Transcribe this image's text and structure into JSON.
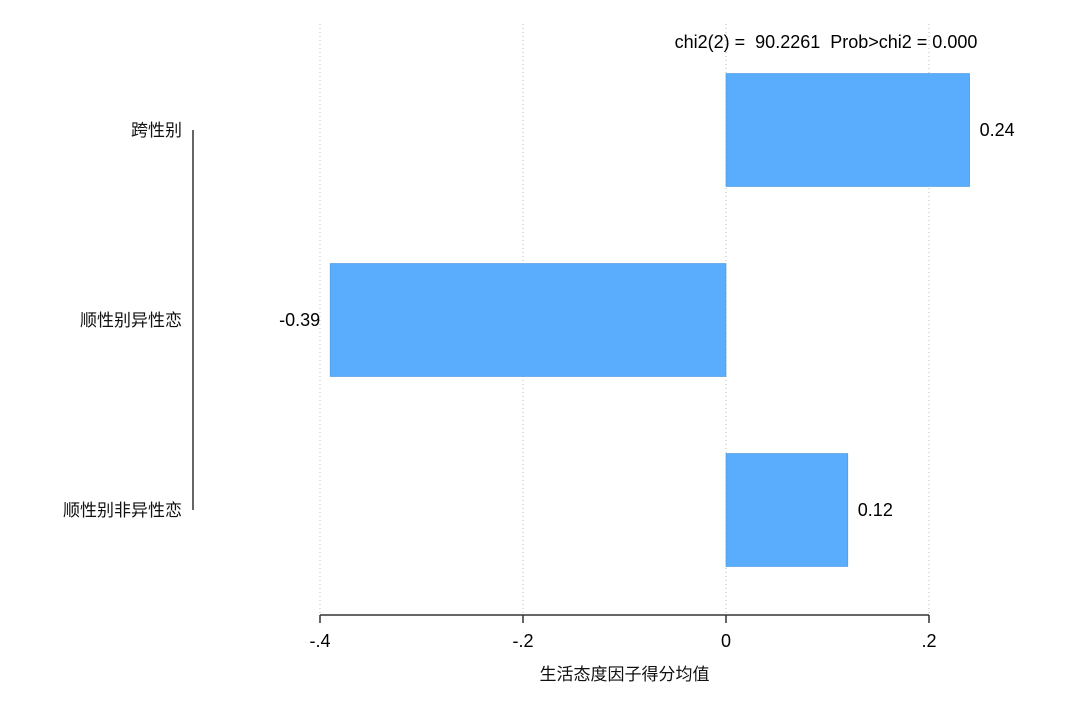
{
  "chart_data": {
    "type": "bar",
    "orientation": "horizontal",
    "categories": [
      "跨性别",
      "顺性别异性恋",
      "顺性别非异性恋"
    ],
    "values": [
      0.24,
      -0.39,
      0.12
    ],
    "value_labels": [
      "0.24",
      "-0.39",
      "0.12"
    ],
    "xlabel": "生活态度因子得分均值",
    "xlim": [
      -0.4,
      0.2
    ],
    "xticks": [
      -0.4,
      -0.2,
      0,
      0.2
    ],
    "xtick_labels": [
      "-.4",
      "-.2",
      "0",
      ".2"
    ],
    "grid": "vertical dotted",
    "annotation": "chi2(2) =  90.2261  Prob>chi2 = 0.000",
    "bar_color": "#5aacfc"
  }
}
